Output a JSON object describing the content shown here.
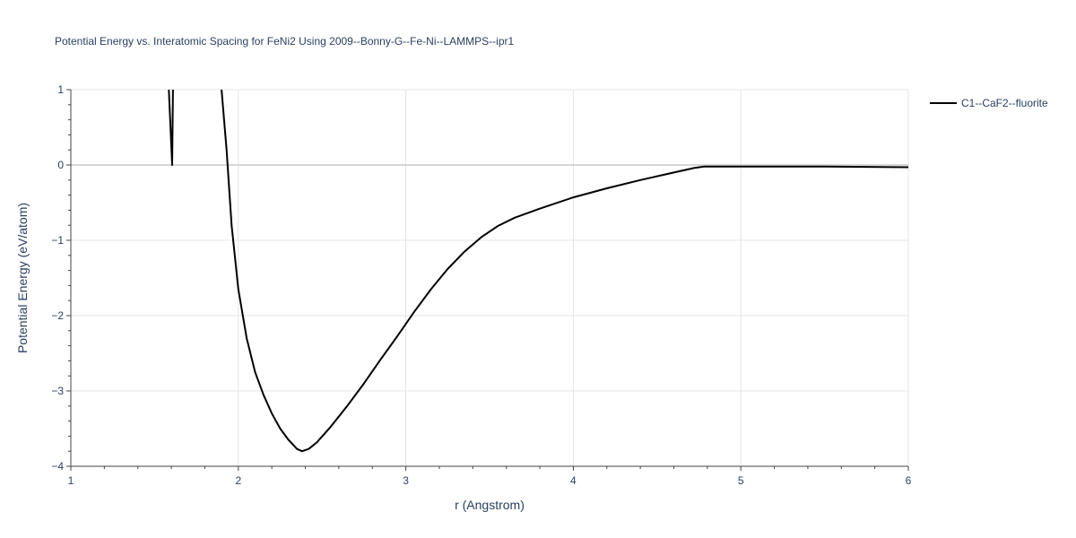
{
  "chart_data": {
    "type": "line",
    "title": "Potential Energy vs. Interatomic Spacing for FeNi2 Using 2009--Bonny-G--Fe-Ni--LAMMPS--ipr1",
    "xlabel": "r (Angstrom)",
    "ylabel": "Potential Energy (eV/atom)",
    "xlim": [
      1,
      6
    ],
    "ylim": [
      -4,
      1
    ],
    "x_ticks": [
      1,
      2,
      3,
      4,
      5,
      6
    ],
    "x_tick_labels": [
      "1",
      "2",
      "3",
      "4",
      "5",
      "6"
    ],
    "y_ticks": [
      1,
      0,
      -1,
      -2,
      -3,
      -4
    ],
    "y_tick_labels": [
      "1",
      "0",
      "−1",
      "−2",
      "−3",
      "−4"
    ],
    "grid": true,
    "legend_position": "top-right",
    "series": [
      {
        "name": "C1--CaF2--fluorite",
        "color": "#000000",
        "segments": [
          [
            [
              1.585,
              1.0
            ],
            [
              1.605,
              0.0
            ],
            [
              1.61,
              1.0
            ]
          ],
          [
            [
              1.9,
              1.0
            ],
            [
              1.93,
              0.2
            ],
            [
              1.96,
              -0.8
            ],
            [
              2.0,
              -1.65
            ],
            [
              2.05,
              -2.3
            ],
            [
              2.1,
              -2.75
            ],
            [
              2.15,
              -3.05
            ],
            [
              2.2,
              -3.3
            ],
            [
              2.25,
              -3.5
            ],
            [
              2.3,
              -3.65
            ],
            [
              2.35,
              -3.77
            ],
            [
              2.38,
              -3.8
            ],
            [
              2.42,
              -3.77
            ],
            [
              2.47,
              -3.68
            ],
            [
              2.55,
              -3.48
            ],
            [
              2.65,
              -3.2
            ],
            [
              2.75,
              -2.9
            ],
            [
              2.85,
              -2.58
            ],
            [
              2.95,
              -2.27
            ],
            [
              3.05,
              -1.95
            ],
            [
              3.15,
              -1.65
            ],
            [
              3.25,
              -1.38
            ],
            [
              3.35,
              -1.15
            ],
            [
              3.45,
              -0.96
            ],
            [
              3.55,
              -0.81
            ],
            [
              3.65,
              -0.7
            ],
            [
              3.8,
              -0.58
            ],
            [
              4.0,
              -0.43
            ],
            [
              4.2,
              -0.31
            ],
            [
              4.4,
              -0.2
            ],
            [
              4.6,
              -0.1
            ],
            [
              4.72,
              -0.04
            ],
            [
              4.78,
              -0.02
            ],
            [
              5.0,
              -0.02
            ],
            [
              5.5,
              -0.02
            ],
            [
              6.0,
              -0.03
            ]
          ]
        ]
      }
    ]
  }
}
